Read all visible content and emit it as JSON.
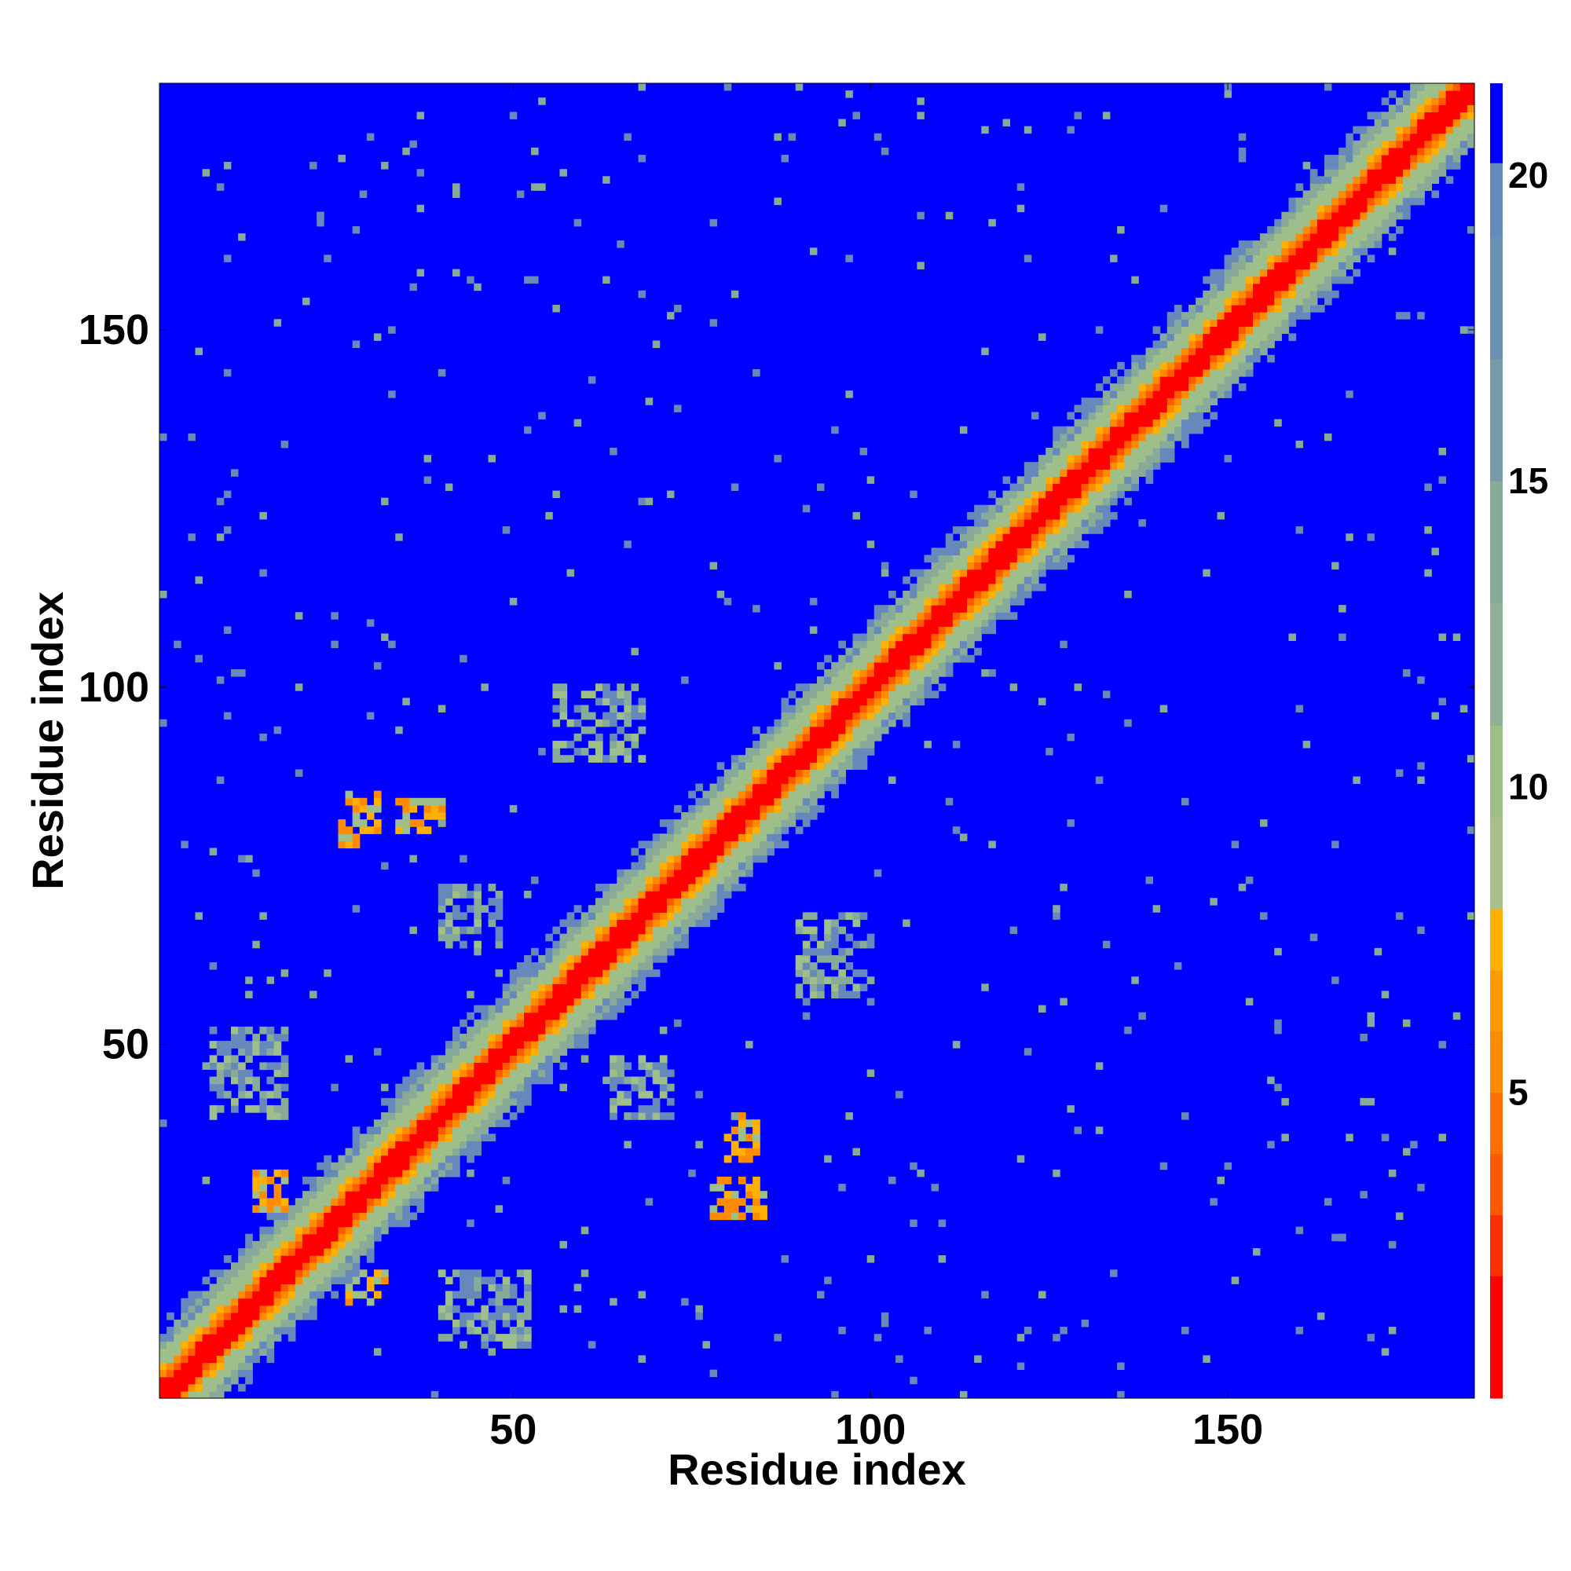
{
  "chart_data": {
    "type": "heatmap",
    "title": "",
    "xlabel": "Residue index",
    "ylabel": "Residue index",
    "n_residues": 184,
    "xlim": [
      1,
      184
    ],
    "ylim": [
      1,
      184
    ],
    "x_ticks": [
      50,
      100,
      150
    ],
    "y_ticks": [
      50,
      100,
      150
    ],
    "x_tick_labels": [
      "50",
      "100",
      "150"
    ],
    "y_tick_labels": [
      "50",
      "100",
      "150"
    ],
    "colorbar": {
      "range": [
        0,
        21.5
      ],
      "ticks": [
        5,
        10,
        15,
        20
      ],
      "tick_labels": [
        "5",
        "10",
        "15",
        "20"
      ],
      "colors": {
        "very_close": "#ff0000",
        "close": "#ff5a00",
        "mid_close": "#ff8c00",
        "mid": "#ffb000",
        "near_contact": "#9fbf8a",
        "contact_shell": "#88aa99",
        "far_contact": "#6688bb",
        "distant": "#0000ff"
      }
    },
    "matrix_description": "pairwise residue distance map, symmetric, red diagonal band",
    "diagonal_band": {
      "width_red": 2,
      "width_orange": 4,
      "width_green": 9
    },
    "blobs": [
      {
        "x": [
          26,
          31
        ],
        "y": [
          78,
          85
        ],
        "level": "orange"
      },
      {
        "x": [
          34,
          40
        ],
        "y": [
          80,
          84
        ],
        "level": "orange"
      },
      {
        "x": [
          78,
          85
        ],
        "y": [
          26,
          31
        ],
        "level": "orange"
      },
      {
        "x": [
          80,
          84
        ],
        "y": [
          34,
          40
        ],
        "level": "orange"
      },
      {
        "x": [
          14,
          18
        ],
        "y": [
          27,
          32
        ],
        "level": "orange"
      },
      {
        "x": [
          27,
          32
        ],
        "y": [
          14,
          18
        ],
        "level": "orange"
      },
      {
        "x": [
          64,
          72
        ],
        "y": [
          40,
          48
        ],
        "level": "green"
      },
      {
        "x": [
          40,
          48
        ],
        "y": [
          64,
          72
        ],
        "level": "green"
      },
      {
        "x": [
          8,
          18
        ],
        "y": [
          40,
          52
        ],
        "level": "green"
      },
      {
        "x": [
          40,
          52
        ],
        "y": [
          8,
          18
        ],
        "level": "green"
      },
      {
        "x": [
          56,
          68
        ],
        "y": [
          90,
          100
        ],
        "level": "green"
      },
      {
        "x": [
          90,
          100
        ],
        "y": [
          56,
          68
        ],
        "level": "green"
      }
    ]
  }
}
